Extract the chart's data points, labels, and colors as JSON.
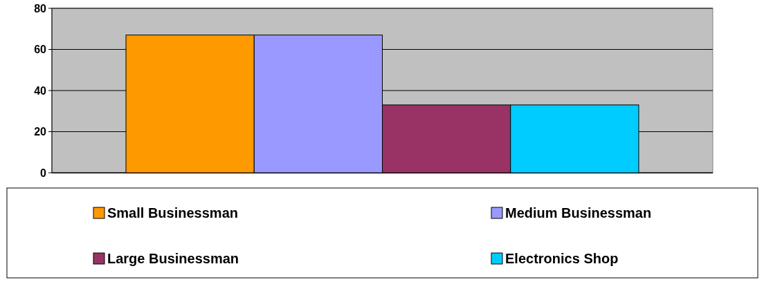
{
  "chart_data": {
    "type": "bar",
    "categories": [
      null
    ],
    "series": [
      {
        "name": "Small Businessman",
        "color": "#ff9900",
        "values": [
          67
        ]
      },
      {
        "name": "Medium Businessman",
        "color": "#9999ff",
        "values": [
          67
        ]
      },
      {
        "name": "Large Businessman",
        "color": "#993366",
        "values": [
          33
        ]
      },
      {
        "name": "Electronics Shop",
        "color": "#00ccff",
        "values": [
          33
        ]
      }
    ],
    "ylim": [
      0,
      80
    ],
    "yticks": [
      0,
      20,
      40,
      60,
      80
    ],
    "grid": "y",
    "legend": "bottom"
  }
}
